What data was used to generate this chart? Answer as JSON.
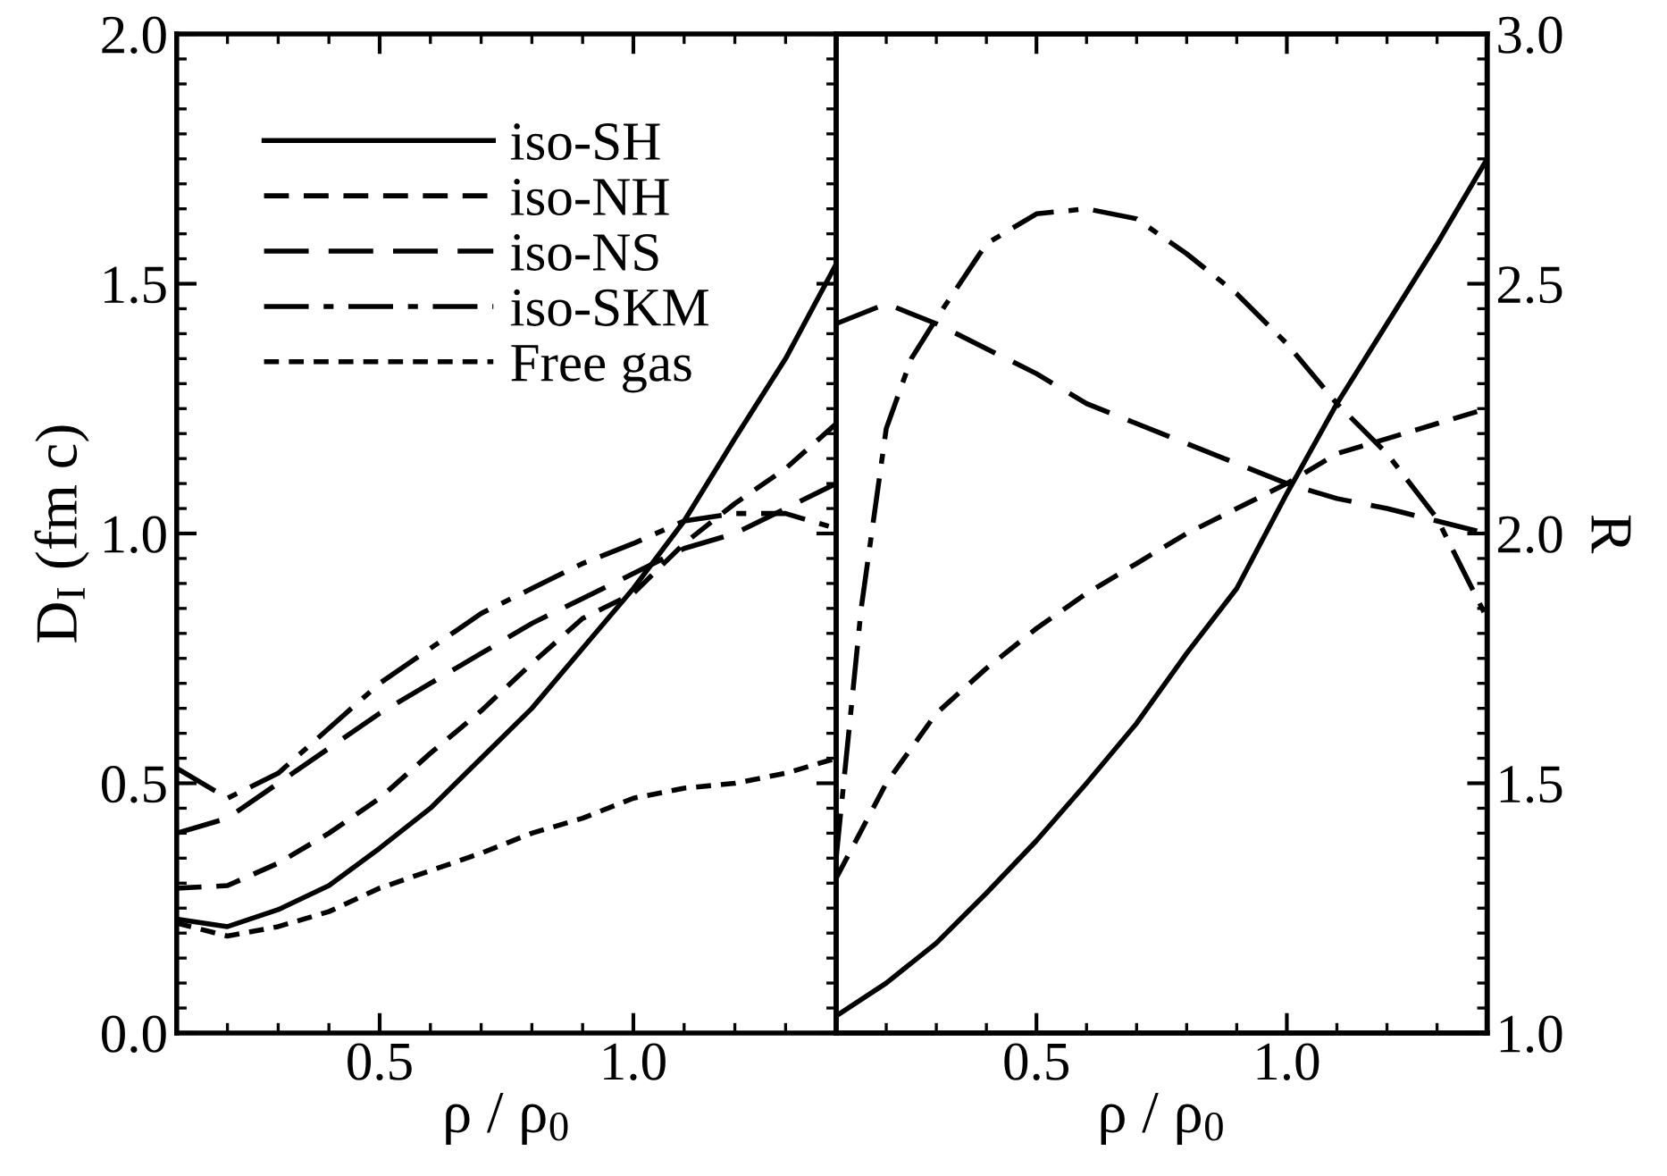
{
  "chart_data": [
    {
      "type": "line",
      "xlabel": "ρ / ρ$_{0}$",
      "ylabel": "D$_{I}$ (fm c)",
      "xlim": [
        0.1,
        1.4
      ],
      "xticks": [
        0.5,
        {
          "value": 1,
          "label": "1.0"
        }
      ],
      "ylim": [
        0,
        2.0
      ],
      "yticks": [
        {
          "value": 0,
          "label": "0.0"
        },
        0.5,
        {
          "value": 1,
          "label": "1.0"
        },
        1.5,
        {
          "value": 2,
          "label": "2.0"
        }
      ],
      "legend": "top left",
      "grid": false,
      "marker": "none",
      "x": [
        0.1,
        0.2,
        0.3,
        0.4,
        0.5,
        0.6,
        0.7,
        0.8,
        0.9,
        1.0,
        1.1,
        1.2,
        1.3,
        1.4
      ],
      "series": [
        {
          "name": "iso-SH",
          "color": "#000000",
          "line_style": "solid",
          "values": [
            0.228,
            0.213,
            0.247,
            0.295,
            0.37,
            0.45,
            0.55,
            0.65,
            0.77,
            0.89,
            1.025,
            1.19,
            1.35,
            1.54
          ]
        },
        {
          "name": "iso-NH",
          "color": "#000000",
          "line_style": "dashed",
          "values": [
            0.29,
            0.295,
            0.34,
            0.4,
            0.47,
            0.56,
            0.645,
            0.74,
            0.83,
            0.88,
            0.98,
            1.06,
            1.13,
            1.22
          ]
        },
        {
          "name": "iso-NS",
          "color": "#000000",
          "line_style": "long dashed",
          "values": [
            0.4,
            0.43,
            0.5,
            0.57,
            0.64,
            0.7,
            0.76,
            0.82,
            0.87,
            0.92,
            0.97,
            1.0,
            1.05,
            1.1
          ]
        },
        {
          "name": "iso-SKM",
          "color": "#000000",
          "line_style": "dashdot",
          "values": [
            0.53,
            0.47,
            0.52,
            0.61,
            0.7,
            0.77,
            0.84,
            0.89,
            0.94,
            0.98,
            1.025,
            1.04,
            1.04,
            1.01
          ]
        },
        {
          "name": "Free gas",
          "color": "#000000",
          "line_style": "dotted",
          "values": [
            0.22,
            0.194,
            0.213,
            0.243,
            0.29,
            0.325,
            0.36,
            0.4,
            0.43,
            0.47,
            0.49,
            0.5,
            0.52,
            0.55
          ]
        }
      ]
    },
    {
      "type": "line",
      "xlabel": "ρ / ρ$_{0}$",
      "y2label": "R",
      "xlim": [
        0.1,
        1.4
      ],
      "xticks": [
        0.5,
        {
          "value": 1,
          "label": "1.0"
        }
      ],
      "y2lim": [
        1.0,
        3.0
      ],
      "y2ticks": [
        {
          "value": 1,
          "label": "1.0"
        },
        1.5,
        {
          "value": 2,
          "label": "2.0"
        },
        2.5,
        {
          "value": 3,
          "label": "3.0"
        }
      ],
      "legend": false,
      "grid": false,
      "marker": "none",
      "x": [
        0.1,
        0.2,
        0.3,
        0.4,
        0.5,
        0.6,
        0.7,
        0.8,
        0.9,
        1.0,
        1.1,
        1.2,
        1.3,
        1.4
      ],
      "series": [
        {
          "color": "#000000",
          "line_style": "solid",
          "axis": "y2",
          "values": [
            1.034,
            1.1,
            1.18,
            1.28,
            1.385,
            1.5,
            1.62,
            1.76,
            1.89,
            2.08,
            2.26,
            2.42,
            2.58,
            2.75
          ]
        },
        {
          "color": "#000000",
          "line_style": "dashed",
          "axis": "y2",
          "values": [
            1.31,
            1.5,
            1.64,
            1.73,
            1.81,
            1.88,
            1.94,
            2.0,
            2.05,
            2.1,
            2.16,
            2.19,
            2.22,
            2.25
          ]
        },
        {
          "color": "#000000",
          "line_style": "long dashed",
          "axis": "y2",
          "values": [
            2.42,
            2.46,
            2.42,
            2.37,
            2.32,
            2.26,
            2.22,
            2.18,
            2.14,
            2.1,
            2.07,
            2.05,
            2.025,
            2.0
          ]
        },
        {
          "color": "#000000",
          "line_style": "dashdot",
          "axis": "y2",
          "x": [
            0.1,
            0.15,
            0.2,
            0.25,
            0.3,
            0.4,
            0.5,
            0.6,
            0.7,
            0.8,
            0.9,
            1.0,
            1.1,
            1.2,
            1.3,
            1.4
          ],
          "values": [
            1.35,
            1.85,
            2.21,
            2.35,
            2.43,
            2.58,
            2.64,
            2.65,
            2.63,
            2.56,
            2.48,
            2.38,
            2.26,
            2.16,
            2.03,
            1.83
          ]
        }
      ]
    }
  ]
}
